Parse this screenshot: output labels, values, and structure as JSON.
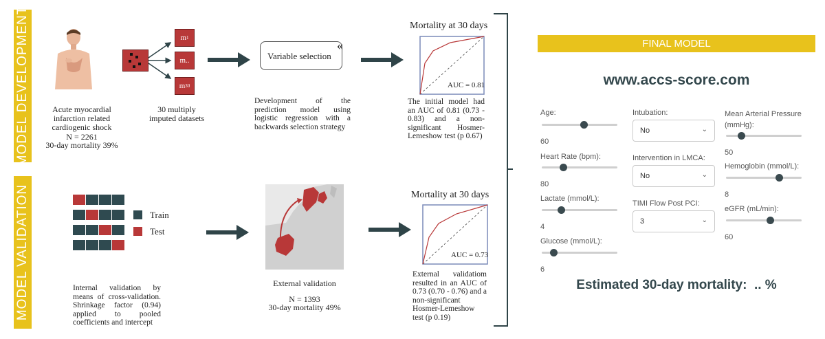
{
  "banners": {
    "development": "MODEL DEVELOPMENT",
    "validation": "MODEL VALIDATION"
  },
  "development": {
    "patient_caption": "Acute myocardial infarction related cardiogenic shock",
    "patient_n": "N = 2261",
    "patient_mortality": "30-day mortality 39%",
    "dataset_labels": [
      "m",
      "m..",
      "m"
    ],
    "dataset_subscripts": [
      "1",
      "",
      "30"
    ],
    "datasets_caption": "30 multiply imputed datasets",
    "variable_selection": "Variable selection",
    "selection_caption": "Development of the prediction model using logistic regression with a backwards selection strategy",
    "roc_title": "Mortality at 30 days",
    "roc_auc": "AUC = 0.81",
    "roc_caption": "The initial model had an AUC of 0.81 (0.73 - 0.83) and a non-significant Hosmer-Lemeshow test (p 0.67)"
  },
  "validation": {
    "legend_train": "Train",
    "legend_test": "Test",
    "train_color": "#2f4a50",
    "test_color": "#b83838",
    "cv_caption": "Internal validation by means of cross-validation. Shrinkage factor (0.94) applied to pooled coefficients and intercept",
    "external_caption": "External validation",
    "external_n": "N = 1393",
    "external_mortality": "30-day mortality 49%",
    "roc_title": "Mortality at 30 days",
    "roc_auc": "AUC = 0.73",
    "roc_caption": "External validatiom resulted in an AUC of 0.73 (0.70 - 0.76) and a non-significant Hosmer-Lemeshow test (p 0.19)"
  },
  "final_model": {
    "banner": "FINAL MODEL",
    "url": "www.accs-score.com",
    "sliders": [
      {
        "label": "Age:",
        "value": "60",
        "level": 0.55
      },
      {
        "label": "Heart Rate (bpm):",
        "value": "80",
        "level": 0.28
      },
      {
        "label": "Lactate (mmol/L):",
        "value": "4",
        "level": 0.25
      },
      {
        "label": "Glucose (mmol/L):",
        "value": "6",
        "level": 0.15
      }
    ],
    "selects": [
      {
        "label": "Intubation:",
        "value": "No"
      },
      {
        "label": "Intervention in LMCA:",
        "value": "No"
      },
      {
        "label": "TIMI Flow Post PCI:",
        "value": "3"
      }
    ],
    "sliders_right": [
      {
        "label": "Mean Arterial Pressure (mmHg):",
        "value": "50",
        "level": 0.2
      },
      {
        "label": "Hemoglobin (mmol/L):",
        "value": "8",
        "level": 0.7
      },
      {
        "label": "eGFR (mL/min):",
        "value": "60",
        "level": 0.58
      }
    ],
    "estimate": "Estimated 30-day mortality:  .. %"
  },
  "colors": {
    "yellow": "#e8c21c",
    "dark_arrow": "#2f4448",
    "red": "#b83838"
  }
}
